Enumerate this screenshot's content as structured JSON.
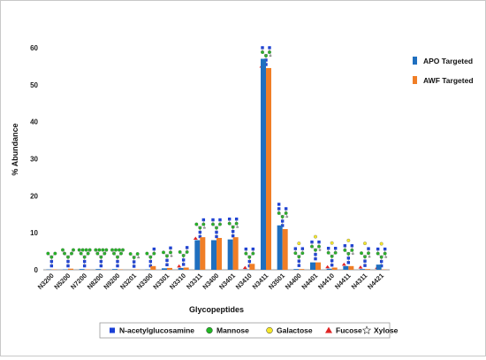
{
  "chart_data": {
    "type": "bar",
    "title": "",
    "xlabel": "Glycopeptides",
    "ylabel": "% Abundance",
    "ylim": [
      0,
      65
    ],
    "yticks": [
      0,
      10,
      20,
      30,
      40,
      50,
      60
    ],
    "grid": false,
    "legend_position": "right",
    "categories": [
      "N3200",
      "N5200",
      "N7200",
      "N8200",
      "N9200",
      "N3201",
      "N3300",
      "N3301",
      "N3310",
      "N3311",
      "N3400",
      "N3401",
      "N3410",
      "N3411",
      "N3501",
      "N4400",
      "N4401",
      "N4410",
      "N4411",
      "N4311",
      "N4421"
    ],
    "series": [
      {
        "name": "APO Targeted",
        "color": "#1f6fbf",
        "values": [
          0.1,
          0.1,
          0.2,
          0.2,
          0.2,
          0,
          0.1,
          0.4,
          0.5,
          8.0,
          8.0,
          8.2,
          0.1,
          57.0,
          12.0,
          0.2,
          2.0,
          0.3,
          1.0,
          0.2,
          1.4
        ]
      },
      {
        "name": "AWF Targeted",
        "color": "#f07e26",
        "values": [
          0.1,
          0.3,
          0.1,
          0.1,
          0.1,
          0.1,
          1.0,
          0.5,
          0.6,
          8.8,
          8.6,
          8.8,
          1.6,
          54.5,
          11.0,
          0.2,
          2.0,
          0.6,
          1.0,
          0.2,
          0.1
        ]
      }
    ]
  },
  "legend_bottom": {
    "items": [
      {
        "label": "N-acetylglucosamine",
        "symbol": "square",
        "color": "#1a3fd6"
      },
      {
        "label": "Mannose",
        "symbol": "circle",
        "color": "#21b823"
      },
      {
        "label": "Galactose",
        "symbol": "circle",
        "color": "#f5e82a"
      },
      {
        "label": "Fucose",
        "symbol": "triangle",
        "color": "#e02424"
      },
      {
        "label": "Xylose",
        "symbol": "star",
        "color": "#ffffff"
      }
    ]
  }
}
